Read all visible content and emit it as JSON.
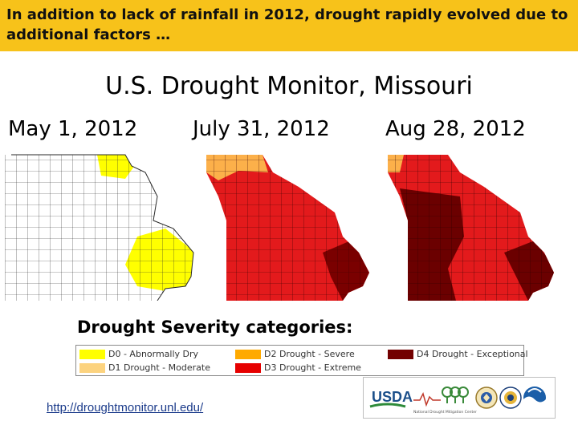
{
  "banner": {
    "line1": "In addition to lack of rainfall in 2012, drought rapidly evolved due to",
    "line2": "additional factors …"
  },
  "title": "U.S. Drought Monitor, Missouri",
  "dates": [
    "May 1, 2012",
    "July 31, 2012",
    "Aug 28, 2012"
  ],
  "legend": {
    "title": "Drought Severity categories:",
    "items": [
      {
        "label": "D0 - Abnormally Dry",
        "color": "#ffff00"
      },
      {
        "label": "D1 Drought - Moderate",
        "color": "#fcd37f"
      },
      {
        "label": "D2 Drought - Severe",
        "color": "#ffaa00"
      },
      {
        "label": "D3 Drought - Extreme",
        "color": "#e60000"
      },
      {
        "label": "D4 Drought - Exceptional",
        "color": "#730000"
      }
    ]
  },
  "url": "http://droughtmonitor.unl.edu/",
  "logos": {
    "usda": "USDA",
    "ndmc_caption": "National Drought Mitigation Center"
  },
  "colors": {
    "banner": "#f7c21a",
    "county_line": "#2a2a2a"
  }
}
